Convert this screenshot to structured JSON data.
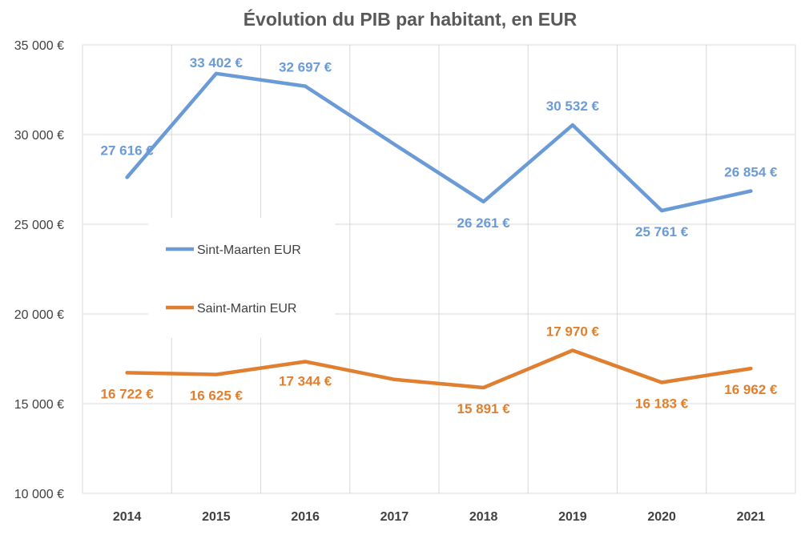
{
  "chart_data": {
    "type": "line",
    "title": "Évolution du PIB par habitant, en EUR",
    "categories": [
      "2014",
      "2015",
      "2016",
      "2017",
      "2018",
      "2019",
      "2020",
      "2021"
    ],
    "ylim": [
      10000,
      35000
    ],
    "yticks": [
      10000,
      15000,
      20000,
      25000,
      30000,
      35000
    ],
    "ytick_labels": [
      "10 000 €",
      "15 000 €",
      "20 000 €",
      "25 000 €",
      "30 000 €",
      "35 000 €"
    ],
    "grid": true,
    "legend_position": "left-middle",
    "series": [
      {
        "name": "Sint-Maarten EUR",
        "color": "#6a9bd6",
        "values": [
          27616,
          33402,
          32697,
          29450,
          26261,
          30532,
          25761,
          26854
        ],
        "labels": [
          "27 616 €",
          "33 402 €",
          "32 697 €",
          null,
          "26 261 €",
          "30 532 €",
          "25 761 €",
          "26 854 €"
        ]
      },
      {
        "name": "Saint-Martin EUR",
        "color": "#e07f2f",
        "values": [
          16722,
          16625,
          17344,
          16350,
          15891,
          17970,
          16183,
          16962
        ],
        "labels": [
          "16 722 €",
          "16 625 €",
          "17 344 €",
          null,
          "15 891 €",
          "17 970 €",
          "16 183 €",
          "16 962 €"
        ]
      }
    ]
  }
}
